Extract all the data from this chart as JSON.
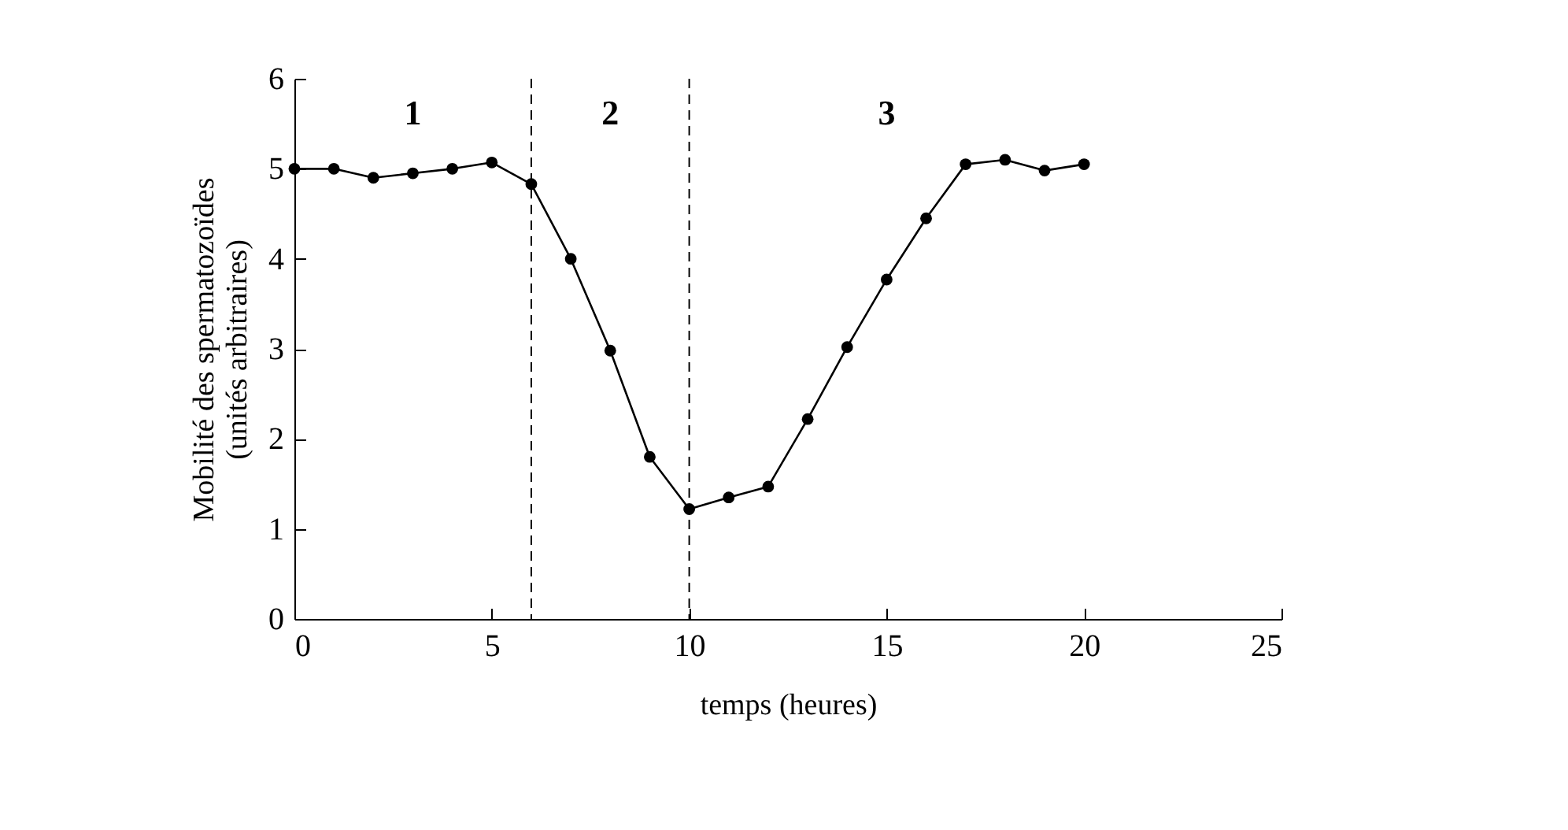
{
  "chart_data": {
    "type": "line",
    "xlabel": "temps (heures)",
    "ylabel": "Mobilité des spermatozoïdes\n(unités arbitraires)",
    "x": [
      0,
      1,
      2,
      3,
      4,
      5,
      6,
      7,
      8,
      9,
      10,
      11,
      12,
      13,
      14,
      15,
      16,
      17,
      18,
      19,
      20
    ],
    "series": [
      {
        "color": "#000000",
        "values": [
          5.0,
          5.0,
          4.9,
          4.95,
          5.0,
          5.07,
          4.83,
          4.0,
          2.98,
          1.8,
          1.22,
          1.35,
          1.47,
          2.22,
          3.02,
          3.77,
          4.45,
          5.05,
          5.1,
          4.98,
          5.05
        ]
      }
    ],
    "xlim": [
      0,
      25
    ],
    "xticks": [
      0,
      5,
      10,
      15,
      20,
      25
    ],
    "ylim": [
      0,
      6
    ],
    "yticks": [
      0,
      1,
      2,
      3,
      4,
      5,
      6
    ],
    "marker": "circle",
    "line_style": "solid",
    "grid": false,
    "ref_lines": [
      {
        "axis": "x",
        "value": 6,
        "line_style": "dashed",
        "color": "#000000"
      },
      {
        "axis": "x",
        "value": 10,
        "line_style": "dashed",
        "color": "#000000"
      }
    ],
    "annotations": [
      "1",
      "2",
      "3"
    ]
  }
}
